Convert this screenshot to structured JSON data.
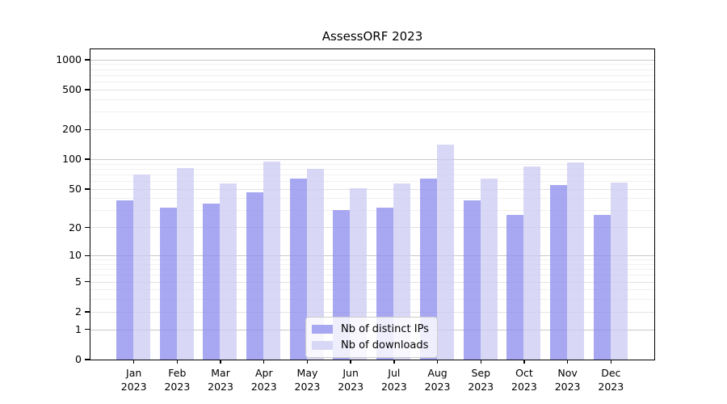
{
  "chart_data": {
    "type": "bar",
    "title": "AssessORF 2023",
    "xlabel": "",
    "ylabel": "",
    "categories": [
      "Jan",
      "Feb",
      "Mar",
      "Apr",
      "May",
      "Jun",
      "Jul",
      "Aug",
      "Sep",
      "Oct",
      "Nov",
      "Dec"
    ],
    "year_label": "2023",
    "series": [
      {
        "name": "Nb of distinct IPs",
        "values": [
          38,
          32,
          35,
          46,
          64,
          30,
          32,
          64,
          38,
          27,
          55,
          27
        ],
        "fill": "rgba(139,139,238,0.75)",
        "swatch": "#a8a8f2"
      },
      {
        "name": "Nb of downloads",
        "values": [
          70,
          82,
          57,
          95,
          80,
          51,
          57,
          140,
          64,
          85,
          92,
          58
        ],
        "fill": "rgba(203,203,243,0.75)",
        "swatch": "#d8d8f6"
      }
    ],
    "y_scale": "log1p",
    "y_ticks": [
      0,
      1,
      2,
      5,
      10,
      20,
      50,
      100,
      200,
      500,
      1000
    ],
    "y_decade_ticks": [
      1,
      10,
      100,
      1000
    ],
    "minor_gridlines": [
      3,
      4,
      6,
      7,
      8,
      9,
      30,
      40,
      60,
      70,
      80,
      90,
      300,
      400,
      600,
      700,
      800,
      900
    ],
    "ylim": [
      0,
      1275
    ],
    "grid": true,
    "legend_position": "lower center"
  },
  "colors": {
    "grid_minor": "#f0f0f0",
    "grid_major": "#e2e2e2",
    "grid_decade": "#c9c9c9",
    "axis": "#000000",
    "legend_border": "#cccccc"
  }
}
